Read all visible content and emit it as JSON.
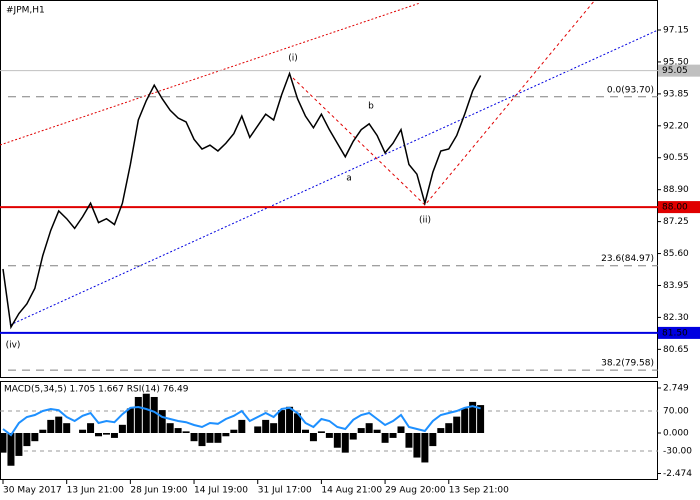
{
  "chart_data": [
    {
      "type": "line",
      "title": "#JPM,H1",
      "categories": [
        "30 May 2017",
        null,
        null,
        null,
        null,
        null,
        null,
        null,
        "13 Jun 21:00",
        null,
        null,
        null,
        null,
        null,
        null,
        null,
        "28 Jun 19:00",
        null,
        null,
        null,
        null,
        null,
        null,
        null,
        "14 Jul 19:00",
        null,
        null,
        null,
        null,
        null,
        null,
        null,
        "31 Jul 17:00",
        null,
        null,
        null,
        null,
        null,
        null,
        null,
        "14 Aug 21:00",
        null,
        null,
        null,
        null,
        null,
        null,
        null,
        "29 Aug 20:00",
        null,
        null,
        null,
        null,
        null,
        null,
        null,
        "13 Sep 21:00",
        null,
        null,
        null,
        null
      ],
      "series": [
        {
          "color": "#000000",
          "values": [
            84.8,
            81.8,
            82.5,
            83.0,
            83.8,
            85.5,
            86.8,
            87.8,
            87.4,
            86.9,
            87.5,
            88.2,
            87.2,
            87.4,
            87.1,
            88.2,
            90.2,
            92.5,
            93.5,
            94.3,
            93.6,
            93.0,
            92.6,
            92.4,
            91.5,
            91.0,
            91.2,
            90.9,
            91.3,
            91.8,
            92.7,
            91.6,
            92.2,
            92.8,
            92.5,
            93.8,
            94.9,
            93.6,
            92.7,
            92.1,
            92.8,
            92.0,
            91.3,
            90.6,
            91.4,
            92.0,
            92.3,
            91.7,
            90.8,
            91.3,
            92.0,
            90.2,
            89.7,
            88.2,
            89.8,
            90.9,
            91.0,
            91.7,
            92.8,
            94.0,
            94.8
          ]
        }
      ],
      "ylim": [
        79.17,
        98.7
      ],
      "yticks": [
        97.15,
        {
          "value": 95.5,
          "label": "95.50"
        },
        93.85,
        {
          "value": 92.2,
          "label": "92.20"
        },
        90.55,
        {
          "value": 88.9,
          "label": "88.90"
        },
        87.25,
        {
          "value": 85.6,
          "label": "85.60"
        },
        83.95,
        {
          "value": 82.3,
          "label": "82.30"
        },
        80.65
      ],
      "levels": [
        {
          "value": 95.05,
          "label": "95.05",
          "color": "#c0c0c0"
        },
        {
          "value": 88.0,
          "label": "88.00",
          "color": "#e00000"
        },
        {
          "value": 81.5,
          "label": "81.50",
          "color": "#0000e0"
        }
      ],
      "fib_levels": [
        {
          "value": 93.7,
          "label": "0.0(93.70)"
        },
        {
          "value": 84.97,
          "label": "23.6(84.97)"
        },
        {
          "value": 79.58,
          "label": "38.2(79.58)"
        }
      ],
      "annotations": [
        "(i)",
        "(ii)",
        "(iv)",
        "a",
        "b"
      ]
    },
    {
      "type": "bar",
      "title": "MACD(5,34,5) 1.705 1.667 RSI(14) 76.49",
      "color": "#000000",
      "values": [
        -1.2,
        -2.0,
        -1.4,
        -0.8,
        -0.5,
        0.2,
        0.8,
        1.0,
        0.6,
        0.0,
        0.2,
        0.6,
        -0.2,
        -0.1,
        -0.3,
        0.5,
        1.5,
        2.2,
        2.4,
        2.2,
        1.4,
        0.6,
        0.3,
        0.1,
        -0.5,
        -0.8,
        -0.6,
        -0.6,
        -0.2,
        0.2,
        0.8,
        0.0,
        0.4,
        0.8,
        0.6,
        1.4,
        1.6,
        1.2,
        0.2,
        -0.5,
        0.1,
        -0.3,
        -0.9,
        -1.2,
        -0.4,
        0.3,
        0.6,
        0.2,
        -0.6,
        -0.3,
        0.4,
        -0.9,
        -1.5,
        -1.8,
        -0.8,
        0.3,
        0.6,
        1.0,
        1.5,
        1.9,
        1.705
      ],
      "ylim": [
        -2.871,
        3.115
      ],
      "yticks": [
        2.749,
        {
          "value": 0,
          "label": "0.000"
        },
        -2.474
      ],
      "y2lim": [
        -102.5,
        142.5
      ],
      "y2ticks": [
        {
          "value": 70,
          "label": "70.00"
        },
        {
          "value": -30,
          "label": "-30.00"
        }
      ],
      "series": [
        {
          "axis": "y2",
          "color": "#1e90ff",
          "values": [
            25,
            10,
            40,
            55,
            60,
            70,
            75,
            72,
            55,
            45,
            58,
            65,
            40,
            45,
            42,
            62,
            78,
            80,
            75,
            68,
            55,
            50,
            45,
            42,
            35,
            30,
            40,
            38,
            50,
            58,
            70,
            45,
            55,
            65,
            55,
            75,
            78,
            65,
            40,
            30,
            50,
            45,
            30,
            25,
            48,
            60,
            65,
            50,
            35,
            45,
            60,
            30,
            25,
            20,
            45,
            60,
            65,
            70,
            78,
            82,
            76.49
          ]
        }
      ]
    }
  ]
}
